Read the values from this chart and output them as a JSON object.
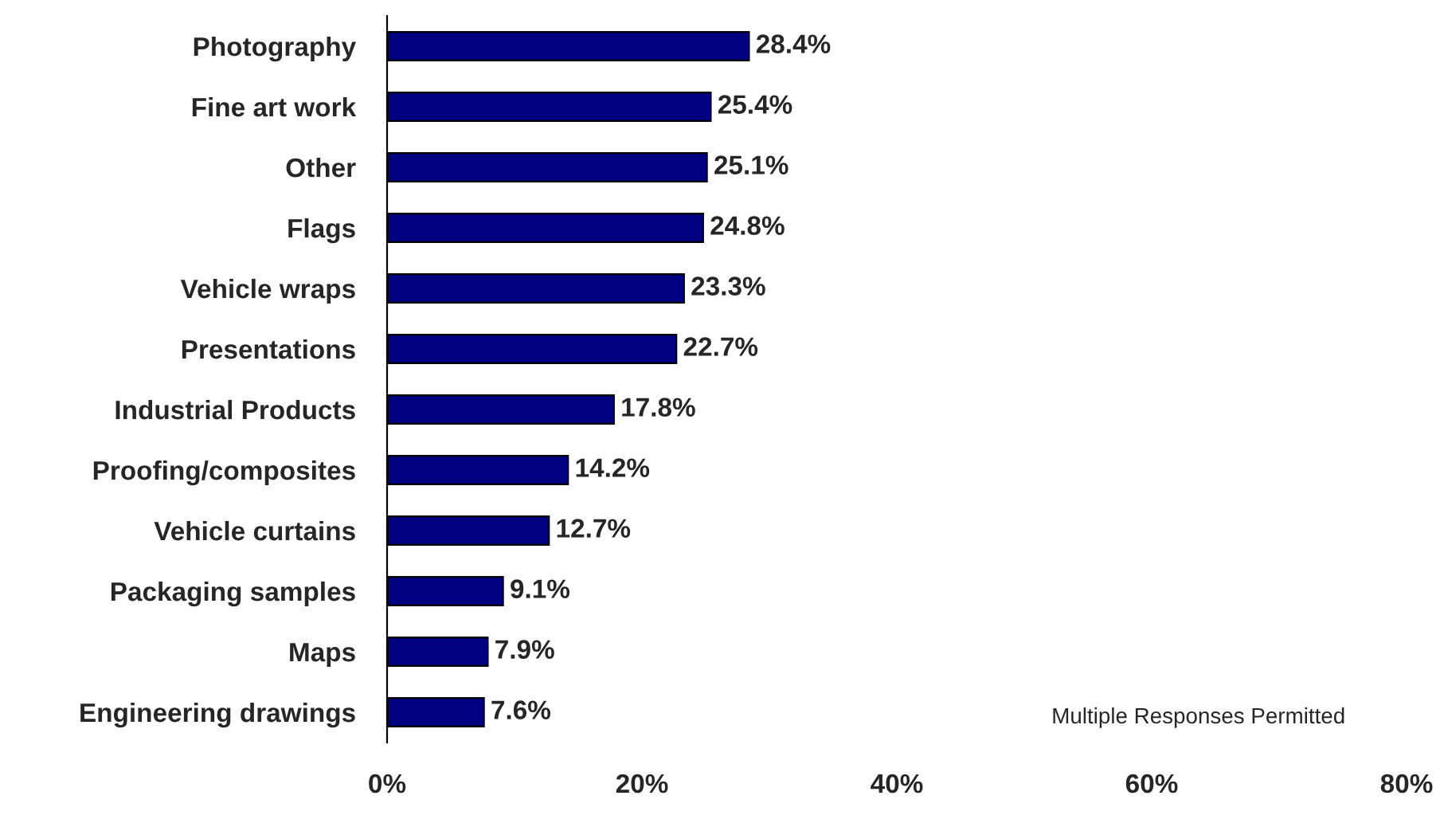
{
  "chart_data": {
    "type": "bar",
    "orientation": "horizontal",
    "categories": [
      "Photography",
      "Fine art work",
      "Other",
      "Flags",
      "Vehicle wraps",
      "Presentations",
      "Industrial Products",
      "Proofing/composites",
      "Vehicle curtains",
      "Packaging samples",
      "Maps",
      "Engineering drawings"
    ],
    "values": [
      28.4,
      25.4,
      25.1,
      24.8,
      23.3,
      22.7,
      17.8,
      14.2,
      12.7,
      9.1,
      7.9,
      7.6
    ],
    "value_labels": [
      "28.4%",
      "25.4%",
      "25.1%",
      "24.8%",
      "23.3%",
      "22.7%",
      "17.8%",
      "14.2%",
      "12.7%",
      "9.1%",
      "7.9%",
      "7.6%"
    ],
    "color": "#000080",
    "xlim": [
      0,
      80
    ],
    "xticks": [
      {
        "value": 0,
        "label": "0%"
      },
      {
        "value": 20,
        "label": "20%"
      },
      {
        "value": 40,
        "label": "40%"
      },
      {
        "value": 60,
        "label": "60%"
      },
      {
        "value": 80,
        "label": "80%"
      }
    ],
    "annotations": [
      "Multiple Responses Permitted"
    ],
    "grid": false,
    "legend": false
  }
}
